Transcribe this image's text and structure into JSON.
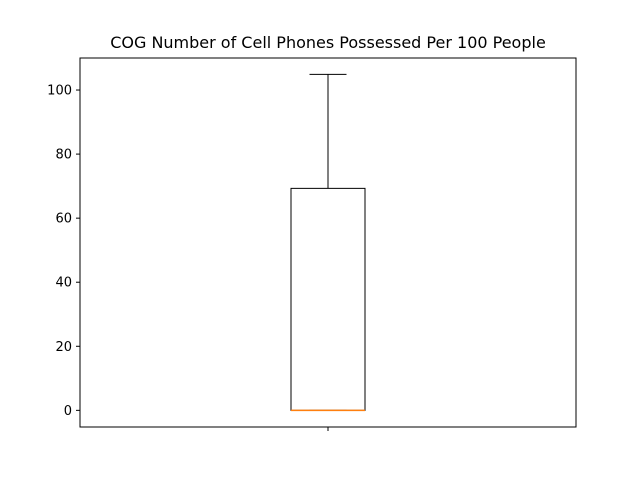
{
  "chart_data": {
    "type": "box",
    "title": "COG Number of Cell Phones Possessed Per 100 People",
    "xlabel": "",
    "ylabel": "",
    "ylim": [
      -5.2,
      110
    ],
    "yticks": [
      0,
      20,
      40,
      60,
      80,
      100
    ],
    "xticks": [
      ""
    ],
    "grid": false,
    "series": [
      {
        "whisker_low": 0,
        "q1": 0,
        "median": 0,
        "q3": 69.3,
        "whisker_high": 104.9
      }
    ],
    "colors": {
      "box": "#000000",
      "median": "#ff7f0e"
    }
  }
}
